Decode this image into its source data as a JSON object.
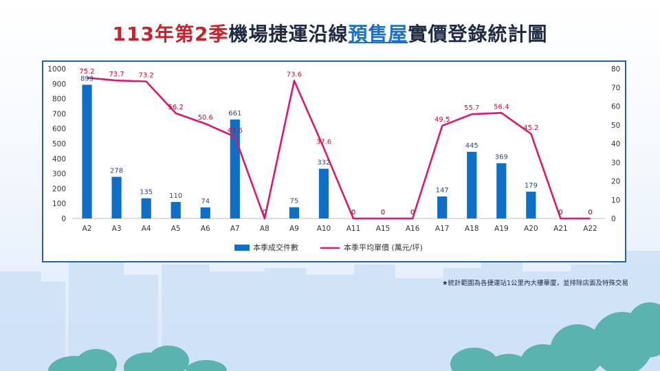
{
  "title": {
    "part1": "113年第2季",
    "part2": "機場捷運沿線",
    "part3": "預售屋",
    "part4": "實價登錄統計圖"
  },
  "footnote": "★統計範圍為各捷運站1公里內大樓華廈，並排除店面及特殊交易",
  "colors": {
    "bar": "#0f6fc6",
    "line": "#e0156f",
    "title_red": "#c8232c",
    "frame": "#2b5f9e"
  },
  "chart_data": {
    "type": "bar+line",
    "categories": [
      "A2",
      "A3",
      "A4",
      "A5",
      "A6",
      "A7",
      "A8",
      "A9",
      "A10",
      "A11",
      "A15",
      "A16",
      "A17",
      "A18",
      "A19",
      "A20",
      "A21",
      "A22"
    ],
    "series": [
      {
        "name": "本季成交件數",
        "type": "bar",
        "axis": "left",
        "values": [
          893,
          278,
          135,
          110,
          74,
          661,
          0,
          75,
          332,
          0,
          0,
          0,
          147,
          445,
          369,
          179,
          0,
          0
        ]
      },
      {
        "name": "本季平均單價 (萬元/坪)",
        "type": "line",
        "axis": "right",
        "values": [
          75.2,
          73.7,
          73.2,
          56.2,
          50.6,
          43.6,
          0,
          73.6,
          37.6,
          0,
          0,
          0,
          49.5,
          55.7,
          56.4,
          45.2,
          0,
          0
        ]
      }
    ],
    "y_left": {
      "min": 0,
      "max": 1000,
      "ticks": [
        0,
        100,
        200,
        300,
        400,
        500,
        600,
        700,
        800,
        900,
        1000
      ]
    },
    "y_right": {
      "min": 0,
      "max": 80,
      "ticks": [
        0,
        10,
        20,
        30,
        40,
        50,
        60,
        70,
        80
      ]
    },
    "legend": "bottom",
    "grid": false
  }
}
